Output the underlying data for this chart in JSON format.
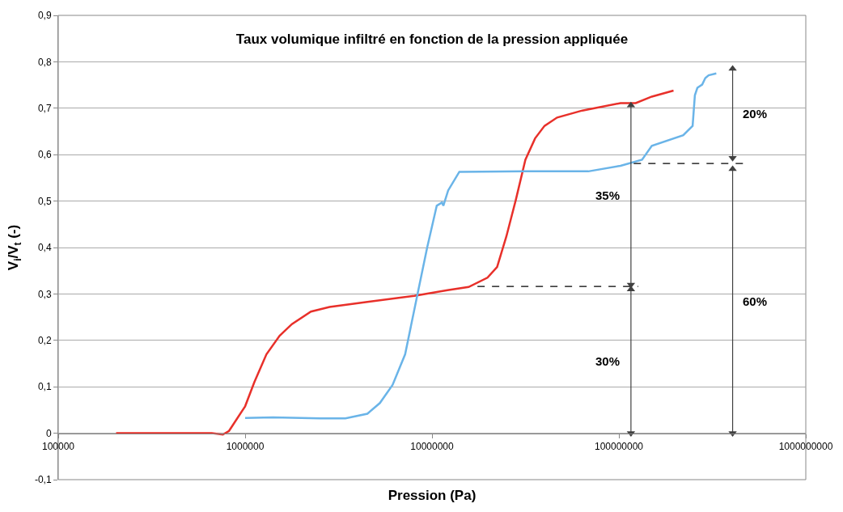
{
  "chart_data": {
    "type": "line",
    "title": "Taux volumique infiltré en fonction de la pression appliquée",
    "xlabel": "Pression (Pa)",
    "ylabel": "V$_{i}$/V$_{t}$ (-)",
    "log": "x",
    "xlim": [
      100000,
      1000000000
    ],
    "xticks": [
      100000,
      1000000,
      10000000,
      100000000,
      1000000000
    ],
    "ylim": [
      -0.1,
      0.9
    ],
    "yticks": [
      {
        "value": -0.1,
        "label": "-0,1"
      },
      0,
      {
        "value": 0.1,
        "label": "0,1"
      },
      {
        "value": 0.2,
        "label": "0,2"
      },
      {
        "value": 0.3,
        "label": "0,3"
      },
      {
        "value": 0.4,
        "label": "0,4"
      },
      {
        "value": 0.5,
        "label": "0,5"
      },
      {
        "value": 0.6,
        "label": "0,6"
      },
      {
        "value": 0.7,
        "label": "0,7"
      },
      {
        "value": 0.8,
        "label": "0,8"
      },
      {
        "value": 0.9,
        "label": "0,9"
      }
    ],
    "grid": "y",
    "marker": "none",
    "line_style": "solid",
    "series": [
      {
        "color": "#e8302a",
        "x": [
          204000,
          662000,
          760000,
          820000,
          1000000,
          1120000,
          1300000,
          1530000,
          1780000,
          2250000,
          2830000,
          4510000,
          8050000,
          12100000,
          15700000,
          19800000,
          22300000,
          25000000,
          28100000,
          31600000,
          35600000,
          40000000,
          46700000,
          63700000,
          102000000,
          123000000,
          150000000,
          196000000
        ],
        "values": [
          0,
          0,
          -0.003,
          0.005,
          0.058,
          0.11,
          0.17,
          0.21,
          0.235,
          0.262,
          0.272,
          0.283,
          0.296,
          0.308,
          0.315,
          0.335,
          0.358,
          0.424,
          0.503,
          0.589,
          0.635,
          0.662,
          0.68,
          0.695,
          0.711,
          0.711,
          0.725,
          0.738
        ]
      },
      {
        "color": "#6ab4e8",
        "x": [
          1000000,
          1410000,
          2520000,
          3440000,
          4510000,
          5260000,
          6150000,
          7180000,
          8380000,
          9420000,
          10600000,
          11300000,
          11500000,
          12200000,
          14000000,
          31600000,
          68600000,
          102000000,
          133000000,
          150000000,
          221000000,
          248000000,
          255000000,
          263000000,
          279000000,
          290000000,
          302000000,
          332000000
        ],
        "values": [
          0.033,
          0.034,
          0.032,
          0.032,
          0.042,
          0.065,
          0.104,
          0.17,
          0.301,
          0.4,
          0.49,
          0.497,
          0.49,
          0.523,
          0.563,
          0.564,
          0.564,
          0.576,
          0.589,
          0.619,
          0.642,
          0.662,
          0.728,
          0.744,
          0.751,
          0.765,
          0.771,
          0.775
        ]
      },
      {
        "color": "#000000",
        "line_style": "dashed",
        "x": [
          17500000,
          127000000
        ],
        "values": [
          0.316,
          0.316
        ]
      },
      {
        "color": "#000000",
        "line_style": "dashed",
        "x": [
          120000000,
          470000000
        ],
        "values": [
          0.581,
          0.581
        ]
      },
      {
        "color": "#404040",
        "marker": "triangle",
        "x": [
          116000000,
          116000000
        ],
        "values": [
          0,
          0.31
        ]
      },
      {
        "color": "#404040",
        "marker": "triangle",
        "x": [
          116000000,
          116000000
        ],
        "values": [
          0.32,
          0.706
        ]
      },
      {
        "color": "#404040",
        "marker": "triangle",
        "x": [
          406000000,
          406000000
        ],
        "values": [
          0,
          0.569
        ]
      },
      {
        "color": "#404040",
        "marker": "triangle",
        "x": [
          406000000,
          406000000
        ],
        "values": [
          0.593,
          0.785
        ]
      }
    ],
    "annotations": [
      "30%",
      "35%",
      "60%",
      "20%"
    ]
  }
}
